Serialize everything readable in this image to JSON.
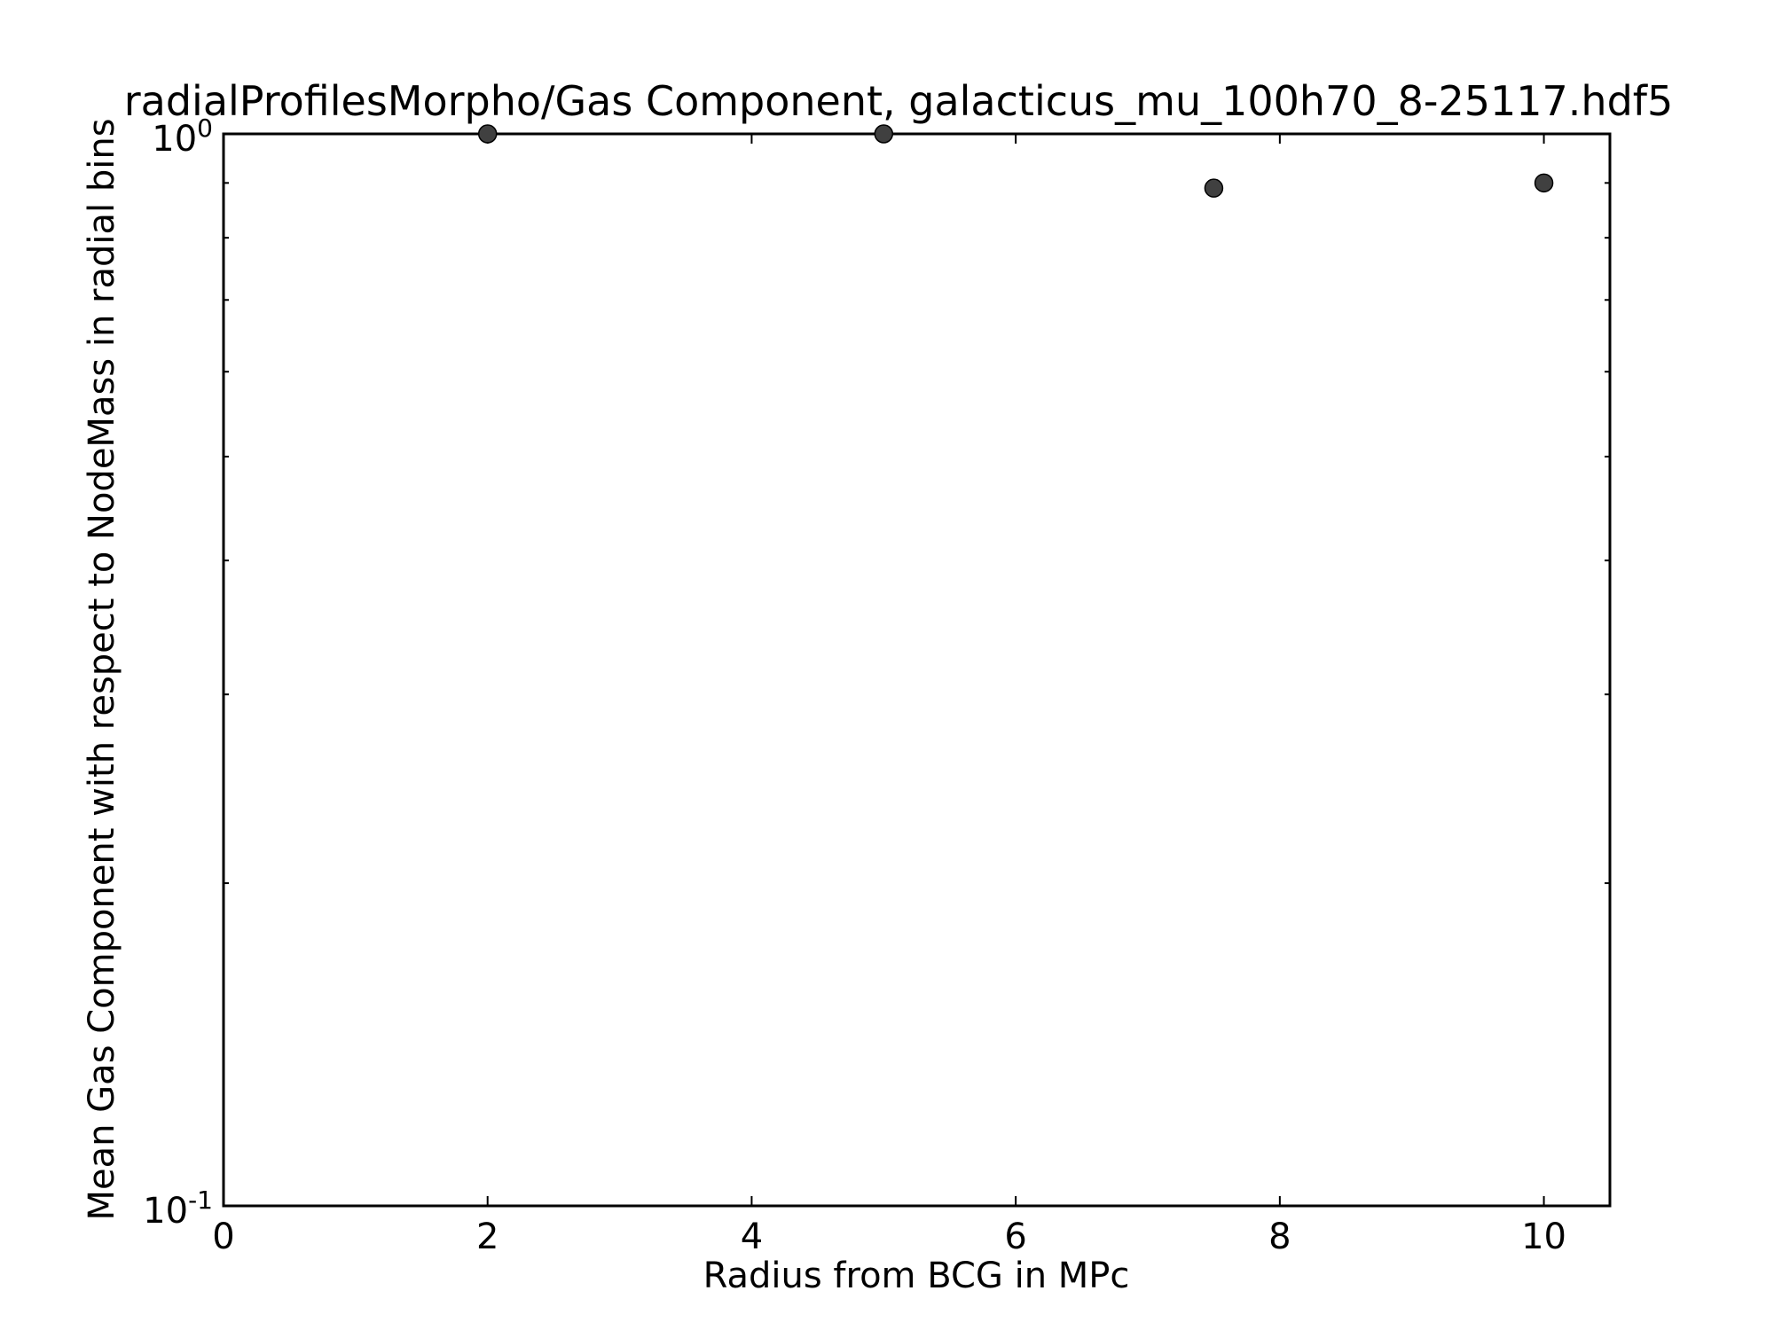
{
  "chart_data": {
    "type": "scatter",
    "title": "radialProfilesMorpho/Gas Component, galacticus_mu_100h70_8-25117.hdf5",
    "xlabel": "Radius from BCG in MPc",
    "ylabel": "Mean Gas Component with respect to NodeMass in radial bins",
    "xlim": [
      0,
      10.5
    ],
    "ylim": [
      0.1,
      1.0
    ],
    "yscale": "log",
    "grid": false,
    "x_ticks": [
      {
        "value": 0,
        "label": "0"
      },
      {
        "value": 2,
        "label": "2"
      },
      {
        "value": 4,
        "label": "4"
      },
      {
        "value": 6,
        "label": "6"
      },
      {
        "value": 8,
        "label": "8"
      },
      {
        "value": 10,
        "label": "10"
      }
    ],
    "y_ticks": [
      {
        "value": 1.0,
        "base": "10",
        "exp": "0"
      },
      {
        "value": 0.1,
        "base": "10",
        "exp": "-1"
      }
    ],
    "series": [
      {
        "color": "#404040",
        "x": [
          2,
          5,
          7.5,
          10
        ],
        "y": [
          1.0,
          1.0,
          0.89,
          0.9
        ]
      }
    ]
  }
}
